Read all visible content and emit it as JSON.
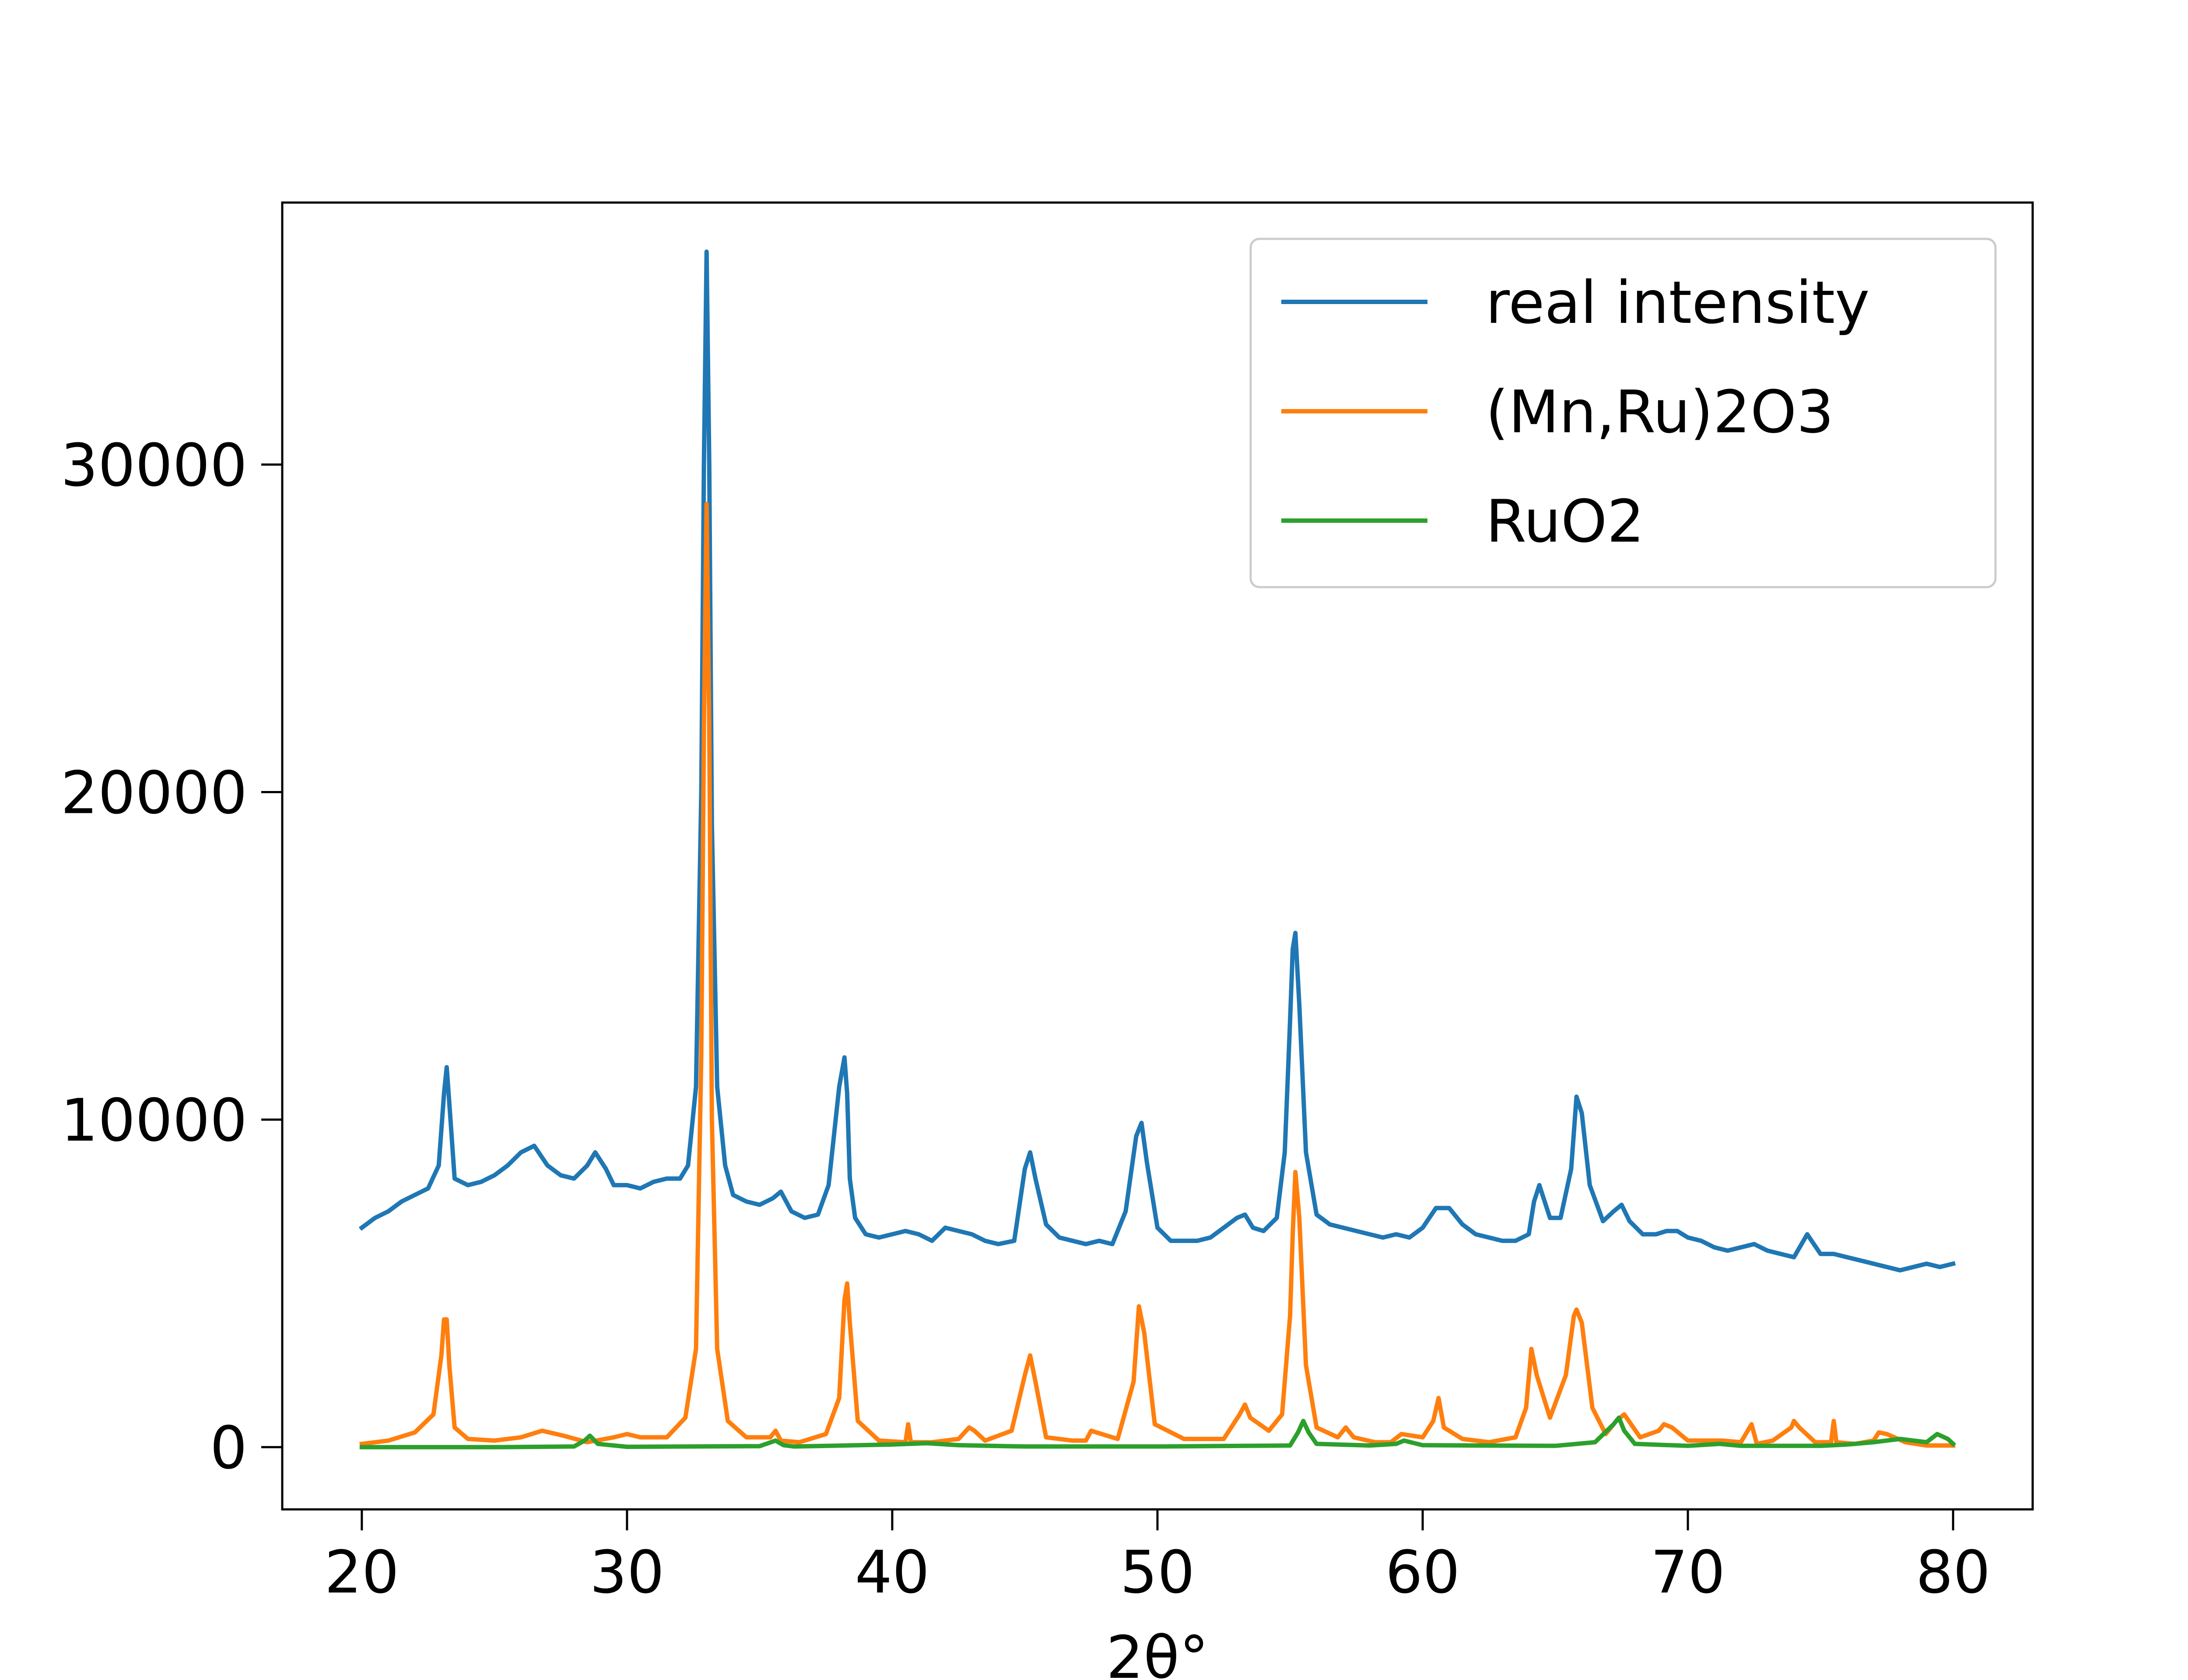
{
  "chart_data": {
    "type": "line",
    "title": "",
    "xlabel": "2θ°",
    "ylabel": "",
    "xlim": [
      17,
      83
    ],
    "ylim": [
      -1900,
      38000
    ],
    "xticks": [
      20,
      30,
      40,
      50,
      60,
      70,
      80
    ],
    "yticks": [
      0,
      10000,
      20000,
      30000
    ],
    "grid": false,
    "legend_position": "top-right",
    "series": [
      {
        "name": "real intensity",
        "color": "#1f77b4",
        "x": [
          20.0,
          20.5,
          21.0,
          21.5,
          22.0,
          22.5,
          22.9,
          23.1,
          23.2,
          23.3,
          23.5,
          24.0,
          24.5,
          25.0,
          25.5,
          26.0,
          26.5,
          27.0,
          27.5,
          28.0,
          28.5,
          28.8,
          29.2,
          29.5,
          30.0,
          30.5,
          31.0,
          31.5,
          32.0,
          32.3,
          32.6,
          32.8,
          32.9,
          33.0,
          33.1,
          33.2,
          33.4,
          33.7,
          34.0,
          34.5,
          35.0,
          35.5,
          35.8,
          36.2,
          36.7,
          37.2,
          37.6,
          38.0,
          38.2,
          38.3,
          38.4,
          38.6,
          39.0,
          39.5,
          40.0,
          40.5,
          41.0,
          41.5,
          42.0,
          42.5,
          43.0,
          43.5,
          44.0,
          44.6,
          45.0,
          45.2,
          45.4,
          45.8,
          46.3,
          46.8,
          47.3,
          47.8,
          48.3,
          48.8,
          49.2,
          49.4,
          49.6,
          50.0,
          50.5,
          51.0,
          51.5,
          52.0,
          52.5,
          53.0,
          53.3,
          53.6,
          54.0,
          54.5,
          54.8,
          55.0,
          55.1,
          55.2,
          55.35,
          55.6,
          56.0,
          56.5,
          57.0,
          57.5,
          58.0,
          58.5,
          59.0,
          59.5,
          60.0,
          60.5,
          61.0,
          61.5,
          62.0,
          62.5,
          63.0,
          63.5,
          64.0,
          64.2,
          64.4,
          64.8,
          65.2,
          65.6,
          65.8,
          66.0,
          66.3,
          66.8,
          67.2,
          67.5,
          67.8,
          68.3,
          68.8,
          69.2,
          69.6,
          70.0,
          70.5,
          71.0,
          71.5,
          72.0,
          72.5,
          73.0,
          73.5,
          74.0,
          74.5,
          75.0,
          75.5,
          76.0,
          76.5,
          77.0,
          77.5,
          78.0,
          78.5,
          79.0,
          79.5,
          80.0
        ],
        "y": [
          6700,
          7000,
          7200,
          7500,
          7700,
          7900,
          8600,
          10800,
          11600,
          10500,
          8200,
          8000,
          8100,
          8300,
          8600,
          9000,
          9200,
          8600,
          8300,
          8200,
          8600,
          9000,
          8500,
          8000,
          8000,
          7900,
          8100,
          8200,
          8200,
          8600,
          11000,
          20000,
          30000,
          36500,
          30000,
          19000,
          11000,
          8600,
          7700,
          7500,
          7400,
          7600,
          7800,
          7200,
          7000,
          7100,
          8000,
          11000,
          11900,
          10800,
          8200,
          7000,
          6500,
          6400,
          6500,
          6600,
          6500,
          6300,
          6700,
          6600,
          6500,
          6300,
          6200,
          6300,
          8500,
          9000,
          8200,
          6800,
          6400,
          6300,
          6200,
          6300,
          6200,
          7200,
          9500,
          9900,
          8700,
          6700,
          6300,
          6300,
          6300,
          6400,
          6700,
          7000,
          7100,
          6700,
          6600,
          7000,
          9000,
          13000,
          15200,
          15700,
          13500,
          9000,
          7100,
          6800,
          6700,
          6600,
          6500,
          6400,
          6500,
          6400,
          6700,
          7300,
          7300,
          6800,
          6500,
          6400,
          6300,
          6300,
          6500,
          7500,
          8000,
          7000,
          7000,
          8500,
          10700,
          10200,
          8000,
          6900,
          7200,
          7400,
          6900,
          6500,
          6500,
          6600,
          6600,
          6400,
          6300,
          6100,
          6000,
          6100,
          6200,
          6000,
          5900,
          5800,
          6500,
          5900,
          5900,
          5800,
          5700,
          5600,
          5500,
          5400,
          5500,
          5600,
          5500,
          5600
        ]
      },
      {
        "name": "(Mn,Ru)2O3",
        "color": "#ff7f0e",
        "x": [
          20.0,
          21.0,
          22.0,
          22.7,
          23.0,
          23.1,
          23.2,
          23.3,
          23.5,
          24.0,
          25.0,
          26.0,
          26.8,
          27.6,
          28.5,
          29.5,
          30.0,
          30.5,
          31.5,
          32.2,
          32.6,
          32.8,
          32.9,
          33.0,
          33.1,
          33.2,
          33.4,
          33.8,
          34.5,
          35.4,
          35.6,
          35.8,
          36.5,
          37.5,
          38.0,
          38.2,
          38.3,
          38.4,
          38.7,
          39.5,
          40.5,
          40.6,
          40.7,
          41.5,
          42.5,
          42.9,
          43.1,
          43.5,
          44.5,
          45.0,
          45.2,
          45.4,
          45.8,
          46.8,
          47.3,
          47.5,
          48.5,
          49.1,
          49.3,
          49.5,
          49.9,
          51.0,
          52.5,
          53.1,
          53.3,
          53.5,
          54.2,
          54.7,
          55.0,
          55.1,
          55.2,
          55.35,
          55.6,
          56.0,
          56.8,
          57.1,
          57.4,
          58.2,
          58.8,
          59.2,
          60.0,
          60.4,
          60.6,
          60.8,
          61.5,
          62.5,
          63.5,
          63.9,
          64.1,
          64.3,
          64.8,
          65.4,
          65.7,
          65.8,
          66.0,
          66.4,
          66.9,
          67.3,
          67.6,
          68.2,
          68.9,
          69.1,
          69.4,
          70.0,
          70.8,
          71.3,
          72.0,
          72.4,
          72.6,
          73.2,
          73.9,
          74.0,
          74.2,
          74.8,
          75.4,
          75.5,
          75.6,
          76.3,
          77.0,
          77.2,
          77.5,
          78.2,
          79.0,
          80.0
        ],
        "y": [
          100,
          200,
          450,
          1000,
          2800,
          3900,
          3900,
          2500,
          600,
          250,
          200,
          300,
          500,
          350,
          150,
          300,
          400,
          300,
          300,
          900,
          3000,
          12000,
          22000,
          28800,
          22000,
          10000,
          3000,
          800,
          300,
          300,
          500,
          200,
          150,
          400,
          1500,
          4500,
          5000,
          3800,
          800,
          200,
          150,
          700,
          150,
          150,
          250,
          600,
          500,
          200,
          500,
          2200,
          2800,
          2000,
          300,
          200,
          200,
          500,
          250,
          2000,
          4300,
          3500,
          700,
          250,
          250,
          1000,
          1300,
          900,
          500,
          1000,
          4000,
          6500,
          8400,
          7000,
          2500,
          600,
          300,
          600,
          300,
          150,
          150,
          400,
          300,
          800,
          1500,
          600,
          250,
          150,
          300,
          1200,
          3000,
          2200,
          900,
          2200,
          4000,
          4200,
          3800,
          1200,
          400,
          800,
          1000,
          300,
          500,
          700,
          600,
          200,
          200,
          200,
          150,
          700,
          100,
          200,
          600,
          800,
          600,
          150,
          150,
          800,
          150,
          100,
          200,
          450,
          400,
          150,
          50,
          50
        ]
      },
      {
        "name": "RuO2",
        "color": "#2ca02c",
        "x": [
          20.0,
          25.0,
          28.0,
          28.4,
          28.6,
          28.9,
          30.0,
          35.0,
          35.6,
          35.9,
          36.3,
          40.0,
          41.3,
          42.5,
          45.0,
          50.0,
          55.0,
          55.3,
          55.5,
          55.7,
          56.0,
          58.0,
          59.0,
          59.3,
          60.0,
          62.0,
          65.0,
          66.5,
          67.2,
          67.4,
          67.6,
          68.0,
          70.0,
          71.2,
          72.0,
          75.0,
          76.0,
          77.0,
          78.0,
          79.0,
          79.4,
          79.8,
          80.0
        ],
        "y": [
          0,
          0,
          20,
          200,
          350,
          100,
          10,
          30,
          200,
          60,
          20,
          80,
          120,
          60,
          20,
          20,
          50,
          450,
          800,
          450,
          100,
          50,
          100,
          200,
          60,
          50,
          40,
          150,
          700,
          900,
          500,
          100,
          40,
          100,
          40,
          40,
          80,
          150,
          250,
          150,
          400,
          250,
          100
        ]
      }
    ]
  }
}
